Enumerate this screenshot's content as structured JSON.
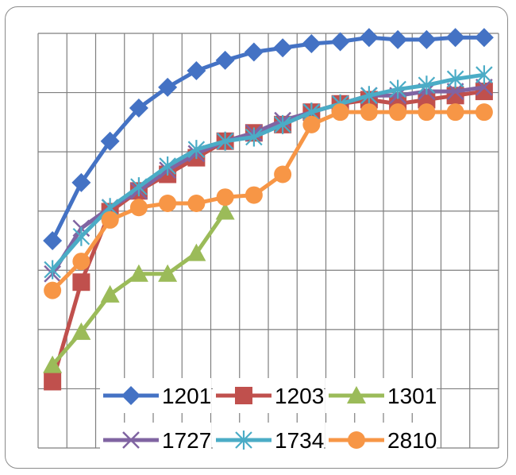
{
  "chart_data": {
    "type": "line",
    "title": "",
    "xlabel": "",
    "ylabel": "",
    "x": [
      1,
      2,
      3,
      4,
      5,
      6,
      7,
      8,
      9,
      10,
      11,
      12,
      13,
      14,
      15,
      16
    ],
    "xlim": [
      0.5,
      16.5
    ],
    "ylim": [
      0,
      1.0
    ],
    "grid": true,
    "legend_position": "bottom-inside",
    "series": [
      {
        "name": "1201",
        "color": "#4472C4",
        "marker": "diamond",
        "values": [
          0.5,
          0.64,
          0.74,
          0.82,
          0.87,
          0.91,
          0.935,
          0.955,
          0.965,
          0.975,
          0.98,
          0.99,
          0.985,
          0.985,
          0.99,
          0.99
        ]
      },
      {
        "name": "1203",
        "color": "#C0504D",
        "marker": "square",
        "values": [
          0.16,
          0.4,
          0.57,
          0.62,
          0.66,
          0.7,
          0.74,
          0.76,
          0.78,
          0.81,
          0.83,
          0.84,
          0.83,
          0.84,
          0.85,
          0.86
        ]
      },
      {
        "name": "1301",
        "color": "#9BBB59",
        "marker": "triangle",
        "values": [
          0.2,
          0.28,
          0.37,
          0.42,
          0.42,
          0.47,
          0.57,
          null,
          null,
          null,
          null,
          null,
          null,
          null,
          null,
          null
        ]
      },
      {
        "name": "1727",
        "color": "#8064A2",
        "marker": "x",
        "values": [
          0.42,
          0.53,
          0.58,
          0.62,
          0.67,
          0.71,
          0.74,
          0.76,
          0.79,
          0.81,
          0.83,
          0.85,
          0.85,
          0.86,
          0.86,
          0.87
        ]
      },
      {
        "name": "1734",
        "color": "#4BACC6",
        "marker": "star",
        "values": [
          0.43,
          0.51,
          0.58,
          0.63,
          0.68,
          0.72,
          0.74,
          0.75,
          0.78,
          0.81,
          0.83,
          0.85,
          0.865,
          0.875,
          0.89,
          0.9
        ]
      },
      {
        "name": "2810",
        "color": "#F79646",
        "marker": "circle",
        "values": [
          0.38,
          0.45,
          0.55,
          0.58,
          0.59,
          0.59,
          0.605,
          0.61,
          0.66,
          0.78,
          0.81,
          0.81,
          0.81,
          0.81,
          0.81,
          0.81
        ]
      }
    ]
  }
}
